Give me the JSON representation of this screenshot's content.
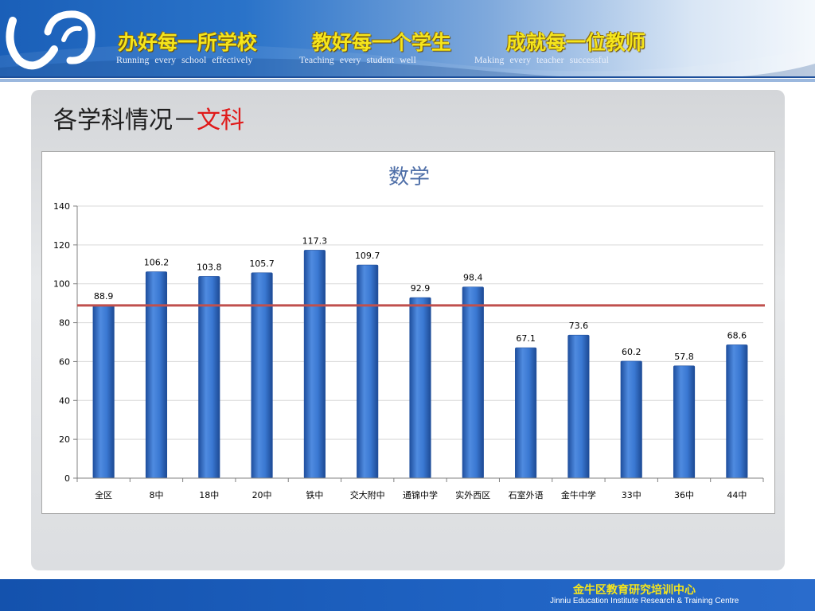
{
  "header": {
    "slogans": [
      {
        "cn": "办好每一所学校",
        "en": "Running every school effectively"
      },
      {
        "cn": "教好每一个学生",
        "en": "Teaching every student well"
      },
      {
        "cn": "成就每一位教师",
        "en": "Making every teacher successful"
      }
    ]
  },
  "slide": {
    "title_prefix": "各学科情况－",
    "title_accent": "文科"
  },
  "colors": {
    "bar": "#3a78d2",
    "bar_dark": "#1f4f9e",
    "reference_line": "#c0504d",
    "title_accent": "#e01a1a",
    "chart_title": "#4f6fa8"
  },
  "chart_data": {
    "type": "bar",
    "title": "数学",
    "categories": [
      "全区",
      "8中",
      "18中",
      "20中",
      "铁中",
      "交大附中",
      "通锦中学",
      "实外西区",
      "石室外语",
      "金牛中学",
      "33中",
      "36中",
      "44中"
    ],
    "series": [
      {
        "values": [
          88.9,
          106.2,
          103.8,
          105.7,
          117.3,
          109.7,
          92.9,
          98.4,
          67.1,
          73.6,
          60.2,
          57.8,
          68.6
        ]
      }
    ],
    "data_labels": [
      "88.9",
      "106.2",
      "103.8",
      "105.7",
      "117.3",
      "109.7",
      "92.9",
      "98.4",
      "67.1",
      "73.6",
      "60.2",
      "57.8",
      "68.6"
    ],
    "reference_value": 88.9,
    "y_ticks": [
      "0",
      "20",
      "40",
      "60",
      "80",
      "100",
      "120",
      "140"
    ],
    "ylim": [
      0,
      140
    ],
    "grid": true,
    "legend": "none"
  },
  "footer": {
    "org_cn": "金牛区教育研究培训中心",
    "org_en": "Jinniu Education Institute Research & Training Centre"
  }
}
